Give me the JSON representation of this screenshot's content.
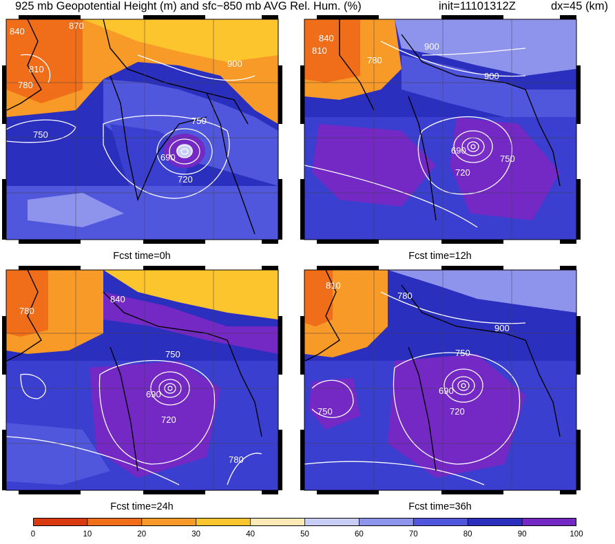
{
  "header": {
    "title": "925 mb Geopotential Height (m) and sfc−850 mb AVG Rel. Hum. (%)",
    "init": "init=11101312Z",
    "dx": "dx=45 (km)"
  },
  "panels": [
    {
      "label": "Fcst time=0h",
      "contour_labels": [
        "840",
        "870",
        "810",
        "780",
        "900",
        "750",
        "750",
        "690",
        "720"
      ]
    },
    {
      "label": "Fcst time=12h",
      "contour_labels": [
        "840",
        "810",
        "780",
        "900",
        "900",
        "690",
        "720",
        "750"
      ]
    },
    {
      "label": "Fcst time=24h",
      "contour_labels": [
        "780",
        "840",
        "750",
        "690",
        "720",
        "780"
      ]
    },
    {
      "label": "Fcst time=36h",
      "contour_labels": [
        "810",
        "780",
        "900",
        "750",
        "750",
        "690",
        "720"
      ]
    }
  ],
  "colorbar": {
    "ticks": [
      "0",
      "10",
      "20",
      "30",
      "40",
      "50",
      "60",
      "70",
      "80",
      "90",
      "100"
    ],
    "colors": [
      "#d93a10",
      "#f06d1a",
      "#f79a28",
      "#fcc52e",
      "#fde9b4",
      "#c8cdf5",
      "#8e93ec",
      "#5157dd",
      "#2a2fbe",
      "#7428c4"
    ]
  }
}
